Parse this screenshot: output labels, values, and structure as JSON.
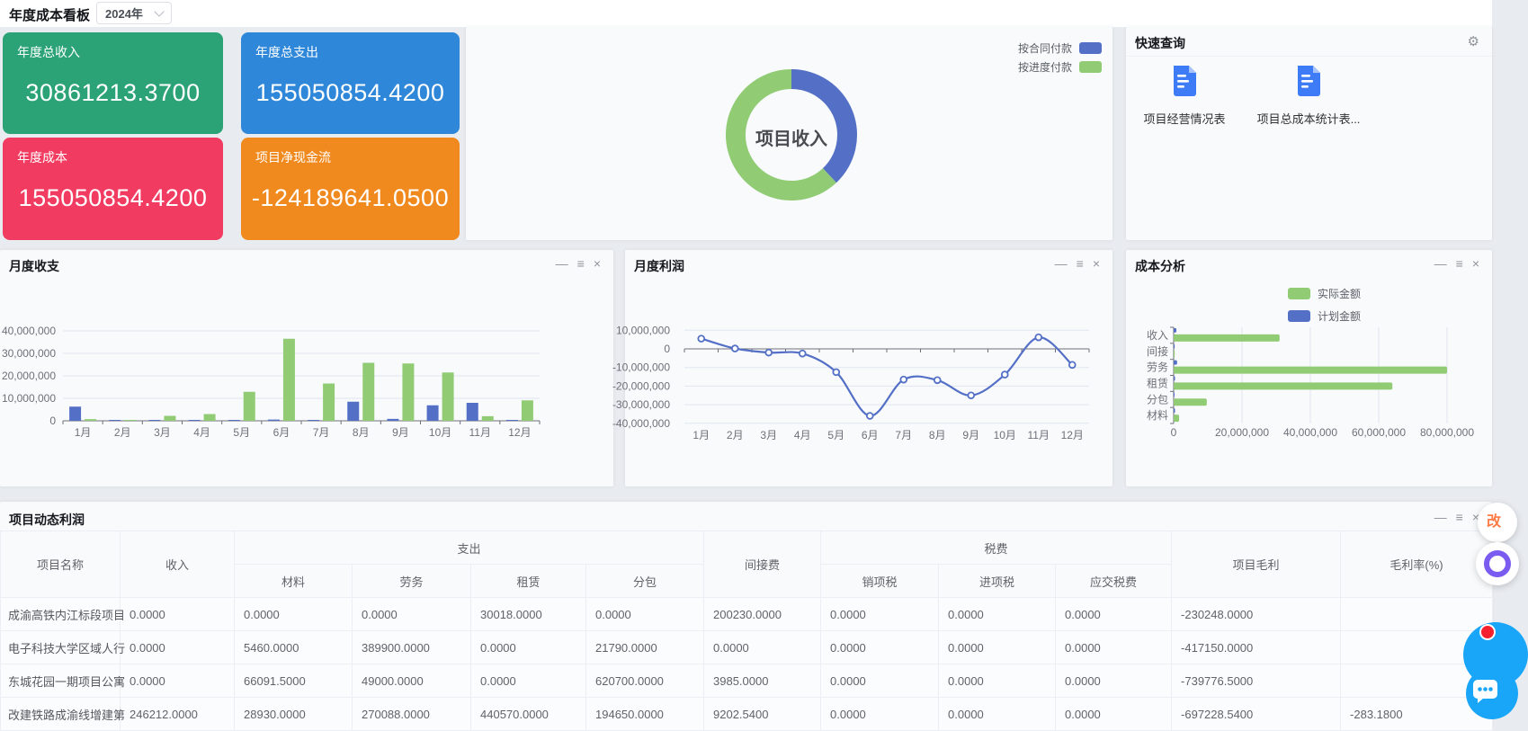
{
  "topbar": {
    "title": "年度成本看板",
    "year": "2024年"
  },
  "icons": {
    "minimize": "—",
    "menu": "≡",
    "close": "×",
    "gear": "⚙",
    "doc": "document-icon",
    "badge": "改"
  },
  "kpis": [
    {
      "label": "年度总收入",
      "value": "30861213.3700",
      "color": "#2BA377"
    },
    {
      "label": "年度总支出",
      "value": "155050854.4200",
      "color": "#2E87D8"
    },
    {
      "label": "年度成本",
      "value": "155050854.4200",
      "color": "#F23B60"
    },
    {
      "label": "项目净现金流",
      "value": "-124189641.0500",
      "color": "#F0891E"
    }
  ],
  "quick_query": {
    "title": "快速查询",
    "shortcuts": [
      "项目经营情况表",
      "项目总成本统计表..."
    ]
  },
  "panels": {
    "monthly": "月度收支",
    "profit": "月度利润",
    "cost": "成本分析",
    "table": "项目动态利润"
  },
  "chart_data": [
    {
      "id": "income-donut",
      "type": "pie",
      "title": "项目收入",
      "center_label": "项目收入",
      "legend_position": "top-right",
      "series": [
        {
          "name": "按合同付款",
          "percent": 38,
          "color": "#5470C6"
        },
        {
          "name": "按进度付款",
          "percent": 62,
          "color": "#91CC75"
        }
      ]
    },
    {
      "id": "monthly-bars",
      "type": "bar",
      "title": "月度收支",
      "categories": [
        "1月",
        "2月",
        "3月",
        "4月",
        "5月",
        "6月",
        "7月",
        "8月",
        "9月",
        "10月",
        "11月",
        "12月"
      ],
      "series": [
        {
          "name": "收入",
          "color": "#5470C6",
          "values": [
            6300000,
            400000,
            100000,
            350000,
            200000,
            550000,
            300000,
            8500000,
            850000,
            6900000,
            8000000,
            350000
          ]
        },
        {
          "name": "支出",
          "color": "#91CC75",
          "values": [
            750000,
            400000,
            2200000,
            3000000,
            12900000,
            36500000,
            16600000,
            25800000,
            25500000,
            21500000,
            2050000,
            9100000
          ]
        }
      ],
      "ylim": [
        0,
        40000000
      ],
      "yticks": [
        0,
        10000000,
        20000000,
        30000000,
        40000000
      ],
      "grid": true,
      "legend": []
    },
    {
      "id": "profit-line",
      "type": "line",
      "title": "月度利润",
      "smooth": true,
      "y_labels_clipped": true,
      "categories": [
        "1月",
        "2月",
        "3月",
        "4月",
        "5月",
        "6月",
        "7月",
        "8月",
        "9月",
        "10月",
        "11月",
        "12月"
      ],
      "series": [
        {
          "name": "利润",
          "color": "#5470C6",
          "values": [
            5500000,
            200000,
            -2000000,
            -2500000,
            -12500000,
            -36000000,
            -16500000,
            -16800000,
            -25000000,
            -13800000,
            6200000,
            -8600000
          ]
        }
      ],
      "ylim": [
        -40000000,
        10000000
      ],
      "yticks": [
        10000000,
        0,
        -10000000,
        -20000000,
        -30000000,
        -40000000
      ],
      "grid": true,
      "legend": []
    },
    {
      "id": "cost-hbars",
      "type": "bar",
      "orientation": "horizontal",
      "title": "成本分析",
      "categories": [
        "收入",
        "间接",
        "劳务",
        "租赁",
        "分包",
        "材料"
      ],
      "series": [
        {
          "name": "计划金额",
          "color": "#5470C6",
          "values": [
            800000,
            300000,
            1000000,
            400000,
            200000,
            400000
          ]
        },
        {
          "name": "实际金额",
          "color": "#91CC75",
          "values": [
            31000000,
            300000,
            80000000,
            64000000,
            9700000,
            1600000
          ]
        }
      ],
      "xlim": [
        0,
        80000000
      ],
      "xticks": [
        0,
        20000000,
        40000000,
        60000000,
        80000000
      ],
      "legend": [
        "实际金额",
        "计划金额"
      ],
      "legend_position": "top"
    }
  ],
  "table": {
    "title": "项目动态利润",
    "header_top": [
      {
        "label": "项目名称",
        "rowspan": 2
      },
      {
        "label": "收入",
        "rowspan": 2
      },
      {
        "label": "支出",
        "colspan": 4
      },
      {
        "label": "间接费",
        "rowspan": 2
      },
      {
        "label": "税费",
        "colspan": 3
      },
      {
        "label": "项目毛利",
        "rowspan": 2
      },
      {
        "label": "毛利率(%)",
        "rowspan": 2
      }
    ],
    "header_sub": [
      "材料",
      "劳务",
      "租赁",
      "分包",
      "销项税",
      "进项税",
      "应交税费"
    ],
    "rows": [
      [
        "成渝高铁内江标段项目",
        "0.0000",
        "0.0000",
        "0.0000",
        "30018.0000",
        "0.0000",
        "200230.0000",
        "0.0000",
        "0.0000",
        "0.0000",
        "-230248.0000",
        ""
      ],
      [
        "电子科技大学区域人行",
        "0.0000",
        "5460.0000",
        "389900.0000",
        "0.0000",
        "21790.0000",
        "0.0000",
        "0.0000",
        "0.0000",
        "0.0000",
        "-417150.0000",
        ""
      ],
      [
        "东城花园一期项目公寓",
        "0.0000",
        "66091.5000",
        "49000.0000",
        "0.0000",
        "620700.0000",
        "3985.0000",
        "0.0000",
        "0.0000",
        "0.0000",
        "-739776.5000",
        ""
      ],
      [
        "改建铁路成渝线增建第",
        "246212.0000",
        "28930.0000",
        "270088.0000",
        "440570.0000",
        "194650.0000",
        "9202.5400",
        "0.0000",
        "0.0000",
        "0.0000",
        "-697228.5400",
        "-283.1800"
      ]
    ]
  }
}
